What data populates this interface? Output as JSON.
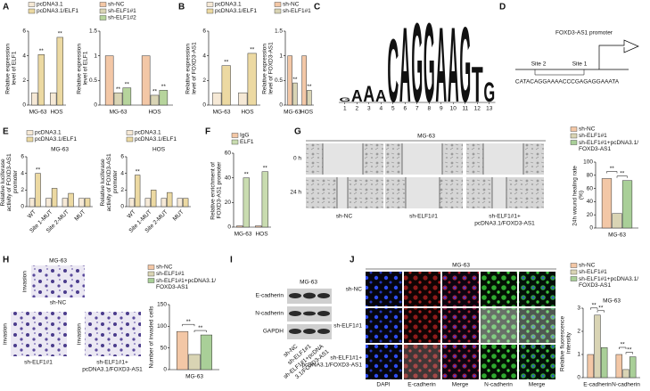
{
  "panel_labels": [
    "A",
    "B",
    "C",
    "D",
    "E",
    "F",
    "G",
    "H",
    "I",
    "J"
  ],
  "chart_data": [
    {
      "type": "bar",
      "ylabel": "Relative expression level of ELF1",
      "categories": [
        "MG-63",
        "HOS"
      ],
      "series": [
        {
          "name": "pcDNA3.1",
          "color": "#f6e9d6",
          "values": [
            1,
            1
          ]
        },
        {
          "name": "pcDNA3.1/ELF1",
          "color": "#ecd9a2",
          "values": [
            4.1,
            5.5
          ],
          "annotations": [
            "**",
            "**"
          ]
        }
      ],
      "ylim": [
        0,
        6
      ],
      "yticks": [
        0,
        2,
        4,
        6
      ],
      "legend": "top"
    },
    {
      "type": "bar",
      "ylabel": "Relative expression level of ELF1",
      "categories": [
        "MG-63",
        "HOS"
      ],
      "series": [
        {
          "name": "sh-NC",
          "color": "#f3c7a6",
          "values": [
            1,
            1
          ]
        },
        {
          "name": "sh-ELF1#1",
          "color": "#d9d4b4",
          "values": [
            0.25,
            0.2
          ],
          "annotations": [
            "**",
            "**"
          ]
        },
        {
          "name": "sh-ELF1#2",
          "color": "#b6d49c",
          "values": [
            0.35,
            0.3
          ],
          "annotations": [
            "**",
            "**"
          ]
        }
      ],
      "ylim": [
        0,
        1.5
      ],
      "yticks": [
        0,
        0.5,
        1,
        1.5
      ],
      "legend": "top"
    },
    {
      "type": "bar",
      "ylabel": "Relative expression level of FOXD3-AS1",
      "categories": [
        "MG-63",
        "HOS"
      ],
      "series": [
        {
          "name": "pcDNA3.1",
          "color": "#f6e9d6",
          "values": [
            1,
            1
          ]
        },
        {
          "name": "pcDNA3.1/ELF1",
          "color": "#ecd9a2",
          "values": [
            3.2,
            4.2
          ],
          "annotations": [
            "**",
            "**"
          ]
        }
      ],
      "ylim": [
        0,
        6
      ],
      "yticks": [
        0,
        2,
        4,
        6
      ],
      "legend": "top"
    },
    {
      "type": "bar",
      "ylabel": "Relative expression level of FOXD3-AS1",
      "categories": [
        "MG-63",
        "HOS"
      ],
      "series": [
        {
          "name": "sh-NC",
          "color": "#f3c7a6",
          "values": [
            1,
            1
          ]
        },
        {
          "name": "sh-ELF1#1",
          "color": "#d9d4b4",
          "values": [
            0.45,
            0.3
          ],
          "annotations": [
            "**",
            "**"
          ]
        }
      ],
      "ylim": [
        0,
        1.5
      ],
      "yticks": [
        0,
        0.5,
        1,
        1.5
      ],
      "legend": "top"
    },
    {
      "type": "bar",
      "title": "MG-63",
      "ylabel": "Relative luciferase activity of FOXD3-AS1 promoter",
      "categories": [
        "WT",
        "Site 1-MUT",
        "Site 2-MUT",
        "MUT"
      ],
      "series": [
        {
          "name": "pcDNA3.1",
          "color": "#f6e9d6",
          "values": [
            1,
            1,
            1,
            1
          ]
        },
        {
          "name": "pcDNA3.1/ELF1",
          "color": "#ecd9a2",
          "values": [
            4,
            2.2,
            1.6,
            1
          ],
          "annotations": [
            "**",
            null,
            null,
            null
          ]
        }
      ],
      "ylim": [
        0,
        6
      ],
      "yticks": [
        0,
        2,
        4,
        6
      ],
      "legend": "top"
    },
    {
      "type": "bar",
      "title": "HOS",
      "ylabel": "Relative luciferase activity of FOXD3-AS1 promoter",
      "categories": [
        "WT",
        "Site 1-MUT",
        "Site 2-MUT",
        "MUT"
      ],
      "series": [
        {
          "name": "pcDNA3.1",
          "color": "#f6e9d6",
          "values": [
            1,
            1,
            1,
            1
          ]
        },
        {
          "name": "pcDNA3.1/ELF1",
          "color": "#ecd9a2",
          "values": [
            3.8,
            2,
            1.7,
            1
          ],
          "annotations": [
            "**",
            null,
            null,
            null
          ]
        }
      ],
      "ylim": [
        0,
        6
      ],
      "yticks": [
        0,
        2,
        4,
        6
      ],
      "legend": "top"
    },
    {
      "type": "bar",
      "ylabel": "Relative enrichment of FOXD3-AS1 promoter",
      "categories": [
        "MG-63",
        "HOS"
      ],
      "series": [
        {
          "name": "IgG",
          "color": "#f3c7a6",
          "values": [
            1,
            1
          ]
        },
        {
          "name": "ELF1",
          "color": "#c9dcb0",
          "values": [
            40,
            45
          ],
          "annotations": [
            "**",
            "**"
          ]
        }
      ],
      "ylim": [
        0,
        60
      ],
      "yticks": [
        0,
        20,
        40,
        60
      ],
      "legend": "top"
    },
    {
      "type": "bar",
      "ylabel": "24h wound healing rate (%)",
      "categories": [
        "MG-63"
      ],
      "series": [
        {
          "name": "sh-NC",
          "color": "#f3c7a6",
          "values": [
            75
          ]
        },
        {
          "name": "sh-ELF1#1",
          "color": "#d9d4b4",
          "values": [
            22
          ]
        },
        {
          "name": "sh-ELF1#1+pcDNA3.1/FOXD3-AS1",
          "color": "#a9cf98",
          "values": [
            72
          ]
        }
      ],
      "comparisons": [
        "**",
        "**"
      ],
      "ylim": [
        0,
        100
      ],
      "yticks": [
        0,
        20,
        40,
        60,
        80,
        100
      ],
      "legend": "top"
    },
    {
      "type": "bar",
      "ylabel": "Number of invaded cells",
      "categories": [
        "MG-63"
      ],
      "series": [
        {
          "name": "sh-NC",
          "color": "#f3c7a6",
          "values": [
            88
          ]
        },
        {
          "name": "sh-ELF1#1",
          "color": "#d9d4b4",
          "values": [
            35
          ]
        },
        {
          "name": "sh-ELF1#1+pcDNA3.1/FOXD3-AS1",
          "color": "#a9cf98",
          "values": [
            80
          ]
        }
      ],
      "comparisons": [
        "**",
        "**"
      ],
      "ylim": [
        0,
        150
      ],
      "yticks": [
        0,
        50,
        100,
        150
      ],
      "legend": "top"
    },
    {
      "type": "bar",
      "title": "MG-63",
      "ylabel": "Relative fluorescence intensity",
      "categories": [
        "E-cadherin",
        "N-cadherin"
      ],
      "series": [
        {
          "name": "sh-NC",
          "color": "#f3c7a6",
          "values": [
            1,
            1
          ]
        },
        {
          "name": "sh-ELF1#1",
          "color": "#d9d4b4",
          "values": [
            2.7,
            0.35
          ]
        },
        {
          "name": "sh-ELF1#1+pcDNA3.1/FOXD3-AS1",
          "color": "#a9cf98",
          "values": [
            1.3,
            0.9
          ]
        }
      ],
      "comparisons": [
        "**",
        "**",
        "**",
        "**"
      ],
      "ylim": [
        0,
        3
      ],
      "yticks": [
        0,
        1,
        2,
        3
      ],
      "legend": "top"
    }
  ],
  "motif": {
    "positions": [
      1,
      2,
      3,
      4,
      5,
      6,
      7,
      8,
      9,
      10,
      11,
      12,
      13
    ],
    "letters": [
      "G",
      "A",
      "A",
      "A",
      "C",
      "A",
      "G",
      "G",
      "A",
      "A",
      "G",
      "T",
      "G"
    ],
    "heights": [
      0.1,
      0.3,
      0.4,
      0.3,
      1.6,
      1.9,
      2,
      2,
      1.9,
      1.9,
      1.9,
      0.9,
      0.5
    ],
    "colors": {
      "A": "#2e9e3e",
      "C": "#2a56c6",
      "G": "#d3a017",
      "T": "#d32f2f"
    }
  },
  "promoter": {
    "title": "FOXD3-AS1 promoter",
    "site2": "Site 2",
    "site1": "Site 1",
    "sequence": "CATACAGGAAAACCCGAGAGGAAATA"
  },
  "wound": {
    "title": "MG-63",
    "times": [
      "0 h",
      "24 h"
    ],
    "groups": [
      [
        "sh-NC"
      ],
      [
        "sh-ELF1#1"
      ],
      [
        "sh-ELF1#1+",
        "pcDNA3.1/FOXD3-AS1"
      ]
    ]
  },
  "invasion": {
    "title": "MG-63",
    "side_labels": [
      "invasion",
      "invasion",
      "invasion"
    ],
    "groups": [
      [
        "sh-NC"
      ],
      [
        "sh-ELF1#1"
      ],
      [
        "sh-ELF1#1+",
        "pcDNA3.1/FOXD3-AS1"
      ]
    ]
  },
  "western": {
    "title": "MG-63",
    "proteins": [
      "E-cadherin",
      "N-cadherin",
      "GAPDH"
    ],
    "lanes": [
      [
        "sh-NC"
      ],
      [
        "sh-ELF1#1"
      ],
      [
        "sh-ELF1#1+pcDNA",
        "3.1/FOXD3-AS1"
      ]
    ]
  },
  "immunofluorescence": {
    "title": "MG-63",
    "rows": [
      [
        "sh-NC"
      ],
      [
        "sh-ELF1#1"
      ],
      [
        "sh-ELF1#1+",
        "pcDNA3.1/FOXD3-AS1"
      ]
    ],
    "columns": [
      "DAPI",
      "E-cadherin",
      "Merge",
      "N-cadherin",
      "Merge"
    ]
  }
}
